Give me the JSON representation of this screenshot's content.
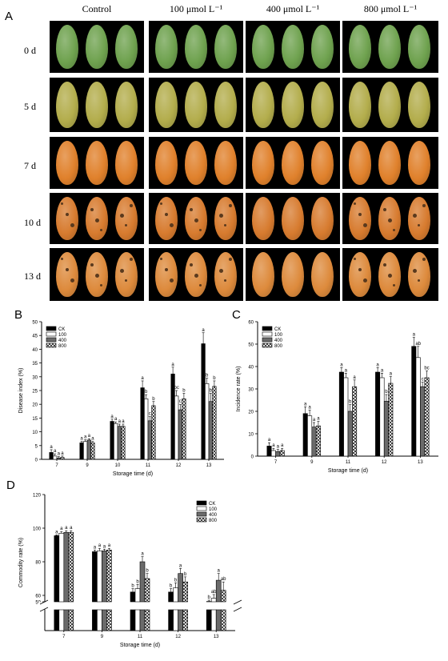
{
  "figure": {
    "panels": {
      "a": "A",
      "b": "B",
      "c": "C",
      "d": "D"
    },
    "photo": {
      "columns": [
        "Control",
        "100 μmol L⁻¹",
        "400 μmol L⁻¹",
        "800 μmol L⁻¹"
      ],
      "rows": [
        "0 d",
        "5 d",
        "7 d",
        "10 d",
        "13 d"
      ],
      "row_colors": [
        "#6fa24f",
        "#b3ad4c",
        "#e0812c",
        "#d77b2f",
        "#dd8a3c"
      ]
    }
  },
  "chart_data": [
    {
      "type": "bar",
      "panel": "B",
      "categories": [
        "7",
        "9",
        "10",
        "11",
        "12",
        "13"
      ],
      "xlabel": "Storage time (d)",
      "ylabel": "Disease index (%)",
      "ylim": [
        0,
        50
      ],
      "yticks": [
        "0",
        "5",
        "10",
        "15",
        "20",
        "25",
        "30",
        "35",
        "40",
        "45",
        "50"
      ],
      "legend": "top-left",
      "series": [
        {
          "name": "CK",
          "values": [
            2.5,
            6.0,
            13.8,
            26.0,
            31.0,
            42.0
          ],
          "err": [
            1.0,
            0.5,
            0.8,
            2.5,
            2.5,
            4.0
          ],
          "letters": [
            "a",
            "a",
            "a",
            "a",
            "a",
            "a"
          ]
        },
        {
          "name": "100",
          "values": [
            1.2,
            6.5,
            13.0,
            22.0,
            23.0,
            27.5
          ],
          "err": [
            0.8,
            0.6,
            0.6,
            1.5,
            2.0,
            2.0
          ],
          "letters": [
            "a",
            "a",
            "a",
            "b",
            "bc",
            "b"
          ]
        },
        {
          "name": "400",
          "values": [
            0.5,
            7.0,
            12.0,
            14.0,
            18.0,
            21.0
          ],
          "err": [
            0.5,
            0.5,
            0.8,
            1.5,
            2.0,
            3.0
          ],
          "letters": [
            "a",
            "a",
            "a",
            "c",
            "c",
            "b"
          ]
        },
        {
          "name": "800",
          "values": [
            0.7,
            6.0,
            12.0,
            19.5,
            22.0,
            26.5
          ],
          "err": [
            0.5,
            0.5,
            0.8,
            1.5,
            2.0,
            2.0
          ],
          "letters": [
            "a",
            "a",
            "a",
            "b",
            "b",
            "b"
          ]
        }
      ]
    },
    {
      "type": "bar",
      "panel": "C",
      "categories": [
        "7",
        "9",
        "11",
        "12",
        "13"
      ],
      "xlabel": "Storage time (d)",
      "ylabel": "Incidence rate (%)",
      "ylim": [
        0,
        60
      ],
      "yticks": [
        "0",
        "10",
        "20",
        "30",
        "40",
        "50",
        "60"
      ],
      "legend": "top-left",
      "series": [
        {
          "name": "CK",
          "values": [
            4.5,
            19.0,
            37.5,
            37.5,
            49.0
          ],
          "err": [
            1.5,
            3.0,
            2.0,
            2.0,
            4.0
          ],
          "letters": [
            "a",
            "a",
            "a",
            "a",
            "a"
          ]
        },
        {
          "name": "100",
          "values": [
            2.5,
            18.0,
            35.0,
            35.0,
            44.0
          ],
          "err": [
            1.0,
            2.5,
            2.0,
            2.0,
            5.0
          ],
          "letters": [
            "a",
            "a",
            "a",
            "a",
            "ab"
          ]
        },
        {
          "name": "400",
          "values": [
            2.0,
            13.0,
            20.0,
            24.5,
            31.0
          ],
          "err": [
            1.0,
            2.0,
            3.0,
            3.0,
            2.0
          ],
          "letters": [
            "a",
            "a",
            "b",
            "b",
            "c"
          ]
        },
        {
          "name": "800",
          "values": [
            2.5,
            13.5,
            31.0,
            32.5,
            35.0
          ],
          "err": [
            1.0,
            2.0,
            3.0,
            3.0,
            3.0
          ],
          "letters": [
            "a",
            "a",
            "a",
            "a",
            "bc"
          ]
        }
      ]
    },
    {
      "type": "bar",
      "panel": "D",
      "categories": [
        "7",
        "9",
        "11",
        "12",
        "13"
      ],
      "xlabel": "Storage time (d)",
      "ylabel": "Commodity rate (%)",
      "ylim": [
        50,
        120
      ],
      "yticks": [
        "50",
        "60",
        "80",
        "100",
        "120"
      ],
      "axis_break": true,
      "legend": "top-right",
      "series": [
        {
          "name": "CK",
          "values": [
            95.5,
            86.0,
            62.0,
            62.0,
            50.5
          ],
          "err": [
            0.5,
            1.0,
            2.0,
            2.0,
            2.0
          ],
          "letters": [
            "a",
            "a",
            "b",
            "b",
            "b"
          ]
        },
        {
          "name": "100",
          "values": [
            97.0,
            86.5,
            64.0,
            64.5,
            55.5
          ],
          "err": [
            1.0,
            1.5,
            2.5,
            3.0,
            5.0
          ],
          "letters": [
            "a",
            "a",
            "b",
            "b",
            "ab"
          ]
        },
        {
          "name": "400",
          "values": [
            97.5,
            86.5,
            80.0,
            73.0,
            69.0
          ],
          "err": [
            1.0,
            1.0,
            3.0,
            3.0,
            4.0
          ],
          "letters": [
            "a",
            "a",
            "a",
            "a",
            "a"
          ]
        },
        {
          "name": "800",
          "values": [
            97.5,
            87.0,
            70.0,
            68.0,
            63.0
          ],
          "err": [
            1.0,
            1.0,
            3.0,
            3.0,
            5.0
          ],
          "letters": [
            "a",
            "a",
            "b",
            "b",
            "ab"
          ]
        }
      ]
    }
  ]
}
